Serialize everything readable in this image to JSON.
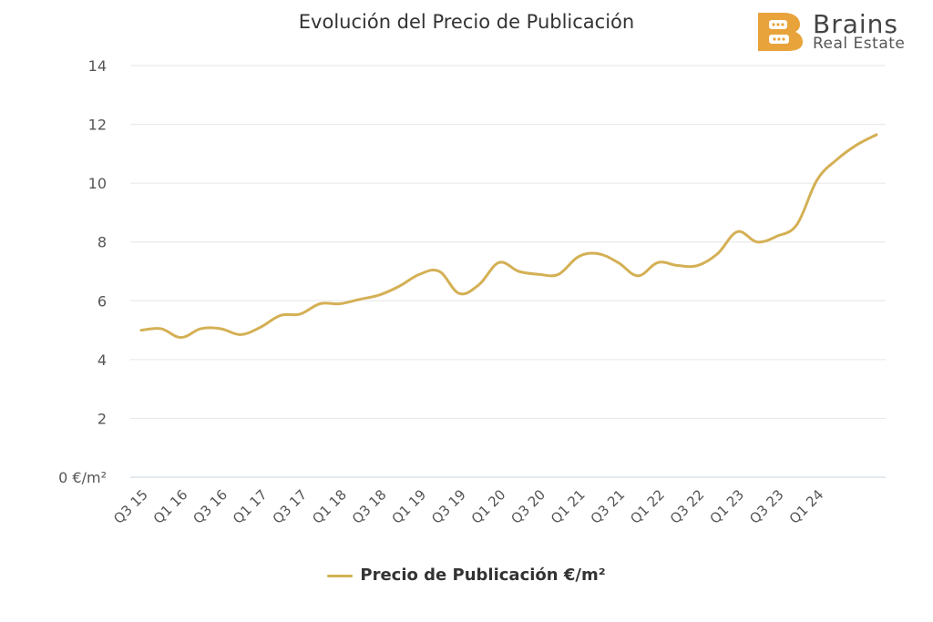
{
  "header": {
    "brand_name": "Brains",
    "brand_sub": "Real Estate",
    "brand_letter": "B",
    "brand_color": "#E8A33A"
  },
  "chart_data": {
    "type": "line",
    "title": "Evolución del Precio de Publicación",
    "xlabel": "",
    "ylabel": "",
    "ylim": [
      0,
      14
    ],
    "yticks": [
      0,
      2,
      4,
      6,
      8,
      10,
      12,
      14
    ],
    "ytick_labels": [
      "0 €/m²",
      "2",
      "4",
      "6",
      "8",
      "10",
      "12",
      "14"
    ],
    "grid": true,
    "legend_position": "bottom-center",
    "categories": [
      "Q3 15",
      "Q4 15",
      "Q1 16",
      "Q2 16",
      "Q3 16",
      "Q4 16",
      "Q1 17",
      "Q2 17",
      "Q3 17",
      "Q4 17",
      "Q1 18",
      "Q2 18",
      "Q3 18",
      "Q4 18",
      "Q1 19",
      "Q2 19",
      "Q3 19",
      "Q4 19",
      "Q1 20",
      "Q2 20",
      "Q3 20",
      "Q4 20",
      "Q1 21",
      "Q2 21",
      "Q3 21",
      "Q4 21",
      "Q1 22",
      "Q2 22",
      "Q3 22",
      "Q4 22",
      "Q1 23",
      "Q2 23",
      "Q3 23",
      "Q4 23",
      "Q1 24",
      "Q2 24",
      "Q3 24",
      "Q4 24"
    ],
    "xtick_labels": [
      "Q3 15",
      "Q1 16",
      "Q3 16",
      "Q1 17",
      "Q3 17",
      "Q1 18",
      "Q3 18",
      "Q1 19",
      "Q3 19",
      "Q1 20",
      "Q3 20",
      "Q1 21",
      "Q3 21",
      "Q1 22",
      "Q3 22",
      "Q1 23",
      "Q3 23",
      "Q1 24"
    ],
    "series": [
      {
        "name": "Precio de Publicación €/m²",
        "color": "#D4B055",
        "values": [
          5.0,
          5.05,
          4.75,
          5.05,
          5.05,
          4.85,
          5.1,
          5.5,
          5.55,
          5.9,
          5.9,
          6.05,
          6.2,
          6.5,
          6.9,
          7.0,
          6.25,
          6.55,
          7.3,
          7.0,
          6.9,
          6.9,
          7.5,
          7.6,
          7.3,
          6.85,
          7.3,
          7.2,
          7.2,
          7.6,
          8.35,
          8.0,
          8.2,
          8.6,
          10.1,
          10.8,
          11.3,
          11.65
        ]
      }
    ]
  }
}
